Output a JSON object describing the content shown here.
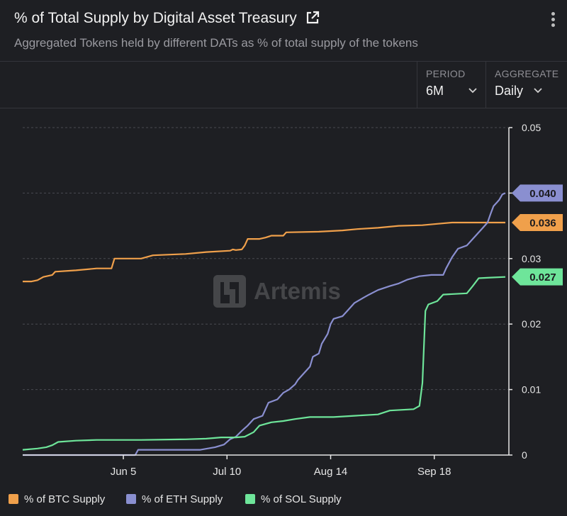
{
  "header": {
    "title": "% of Total Supply by Digital Asset Treasury",
    "subtitle": "Aggregated Tokens held by different DATs as % of total supply of the tokens"
  },
  "controls": {
    "period": {
      "label": "PERIOD",
      "value": "6M"
    },
    "aggregate": {
      "label": "AGGREGATE",
      "value": "Daily"
    }
  },
  "watermark": "Artemis",
  "chart_data": {
    "type": "line",
    "title": "% of Total Supply by Digital Asset Treasury",
    "ylim": [
      0,
      0.05
    ],
    "yticks": [
      {
        "value": 0,
        "label": "0"
      },
      {
        "value": 0.01,
        "label": "0.01"
      },
      {
        "value": 0.02,
        "label": "0.02"
      },
      {
        "value": 0.03,
        "label": "0.03"
      },
      {
        "value": 0.04,
        "label": ""
      },
      {
        "value": 0.05,
        "label": "0.05"
      }
    ],
    "xlim": [
      0,
      163
    ],
    "xticks": [
      {
        "day": 34,
        "label": "Jun 5"
      },
      {
        "day": 69,
        "label": "Jul 10"
      },
      {
        "day": 104,
        "label": "Aug 14"
      },
      {
        "day": 139,
        "label": "Sep 18"
      }
    ],
    "series": [
      {
        "name": "% of BTC Supply",
        "color": "#f0a04b",
        "last_label": "0.036",
        "points": [
          [
            0,
            0.0265
          ],
          [
            3,
            0.0265
          ],
          [
            5,
            0.0267
          ],
          [
            7,
            0.0272
          ],
          [
            10,
            0.0275
          ],
          [
            11,
            0.028
          ],
          [
            18,
            0.0282
          ],
          [
            25,
            0.0285
          ],
          [
            30,
            0.0285
          ],
          [
            31,
            0.03
          ],
          [
            40,
            0.03
          ],
          [
            44,
            0.0305
          ],
          [
            55,
            0.0307
          ],
          [
            62,
            0.031
          ],
          [
            70,
            0.0312
          ],
          [
            71,
            0.0314
          ],
          [
            72,
            0.0313
          ],
          [
            74,
            0.0314
          ],
          [
            75,
            0.032
          ],
          [
            76,
            0.033
          ],
          [
            80,
            0.033
          ],
          [
            82,
            0.0332
          ],
          [
            84,
            0.0335
          ],
          [
            88,
            0.0335
          ],
          [
            89,
            0.034
          ],
          [
            100,
            0.0341
          ],
          [
            108,
            0.0343
          ],
          [
            113,
            0.0345
          ],
          [
            120,
            0.0347
          ],
          [
            127,
            0.035
          ],
          [
            135,
            0.0351
          ],
          [
            140,
            0.0353
          ],
          [
            145,
            0.0355
          ],
          [
            160,
            0.0355
          ],
          [
            163,
            0.0355
          ]
        ]
      },
      {
        "name": "% of ETH Supply",
        "color": "#8a8fd0",
        "last_label": "0.040",
        "points": [
          [
            0,
            0
          ],
          [
            38,
            0
          ],
          [
            39,
            0.0008
          ],
          [
            46,
            0.0008
          ],
          [
            52,
            0.0008
          ],
          [
            60,
            0.0008
          ],
          [
            65,
            0.0012
          ],
          [
            68,
            0.0016
          ],
          [
            70,
            0.0024
          ],
          [
            72,
            0.0028
          ],
          [
            74,
            0.0037
          ],
          [
            76,
            0.0045
          ],
          [
            78,
            0.0055
          ],
          [
            81,
            0.006
          ],
          [
            82,
            0.007
          ],
          [
            83,
            0.008
          ],
          [
            86,
            0.0085
          ],
          [
            88,
            0.0095
          ],
          [
            90,
            0.01
          ],
          [
            92,
            0.0108
          ],
          [
            93,
            0.0115
          ],
          [
            95,
            0.0125
          ],
          [
            97,
            0.0135
          ],
          [
            98,
            0.015
          ],
          [
            100,
            0.0155
          ],
          [
            101,
            0.017
          ],
          [
            103,
            0.0185
          ],
          [
            104,
            0.02
          ],
          [
            105,
            0.0208
          ],
          [
            108,
            0.0212
          ],
          [
            110,
            0.0222
          ],
          [
            112,
            0.0232
          ],
          [
            115,
            0.024
          ],
          [
            117,
            0.0245
          ],
          [
            120,
            0.0252
          ],
          [
            124,
            0.0258
          ],
          [
            127,
            0.0262
          ],
          [
            130,
            0.0268
          ],
          [
            134,
            0.0273
          ],
          [
            138,
            0.0275
          ],
          [
            142,
            0.0275
          ],
          [
            143,
            0.0285
          ],
          [
            145,
            0.0302
          ],
          [
            147,
            0.0315
          ],
          [
            150,
            0.032
          ],
          [
            152,
            0.033
          ],
          [
            155,
            0.0345
          ],
          [
            157,
            0.0355
          ],
          [
            158,
            0.0368
          ],
          [
            159,
            0.038
          ],
          [
            160,
            0.0385
          ],
          [
            161,
            0.039
          ],
          [
            162,
            0.0398
          ],
          [
            163,
            0.04
          ]
        ]
      },
      {
        "name": "% of SOL Supply",
        "color": "#6ee59a",
        "last_label": "0.027",
        "points": [
          [
            0,
            0.0008
          ],
          [
            5,
            0.001
          ],
          [
            8,
            0.0012
          ],
          [
            10,
            0.0015
          ],
          [
            12,
            0.002
          ],
          [
            18,
            0.0022
          ],
          [
            25,
            0.0023
          ],
          [
            40,
            0.0023
          ],
          [
            55,
            0.0024
          ],
          [
            62,
            0.0025
          ],
          [
            67,
            0.0027
          ],
          [
            72,
            0.0027
          ],
          [
            75,
            0.0028
          ],
          [
            78,
            0.0035
          ],
          [
            80,
            0.0045
          ],
          [
            84,
            0.005
          ],
          [
            88,
            0.0052
          ],
          [
            92,
            0.0055
          ],
          [
            97,
            0.0058
          ],
          [
            105,
            0.0058
          ],
          [
            112,
            0.006
          ],
          [
            120,
            0.0062
          ],
          [
            124,
            0.0068
          ],
          [
            132,
            0.007
          ],
          [
            134,
            0.0075
          ],
          [
            135,
            0.011
          ],
          [
            136,
            0.022
          ],
          [
            137,
            0.023
          ],
          [
            140,
            0.0235
          ],
          [
            142,
            0.0245
          ],
          [
            150,
            0.0247
          ],
          [
            152,
            0.0258
          ],
          [
            154,
            0.027
          ],
          [
            158,
            0.0271
          ],
          [
            163,
            0.0272
          ]
        ]
      }
    ],
    "legend": [
      "% of BTC Supply",
      "% of ETH Supply",
      "% of SOL Supply"
    ]
  }
}
